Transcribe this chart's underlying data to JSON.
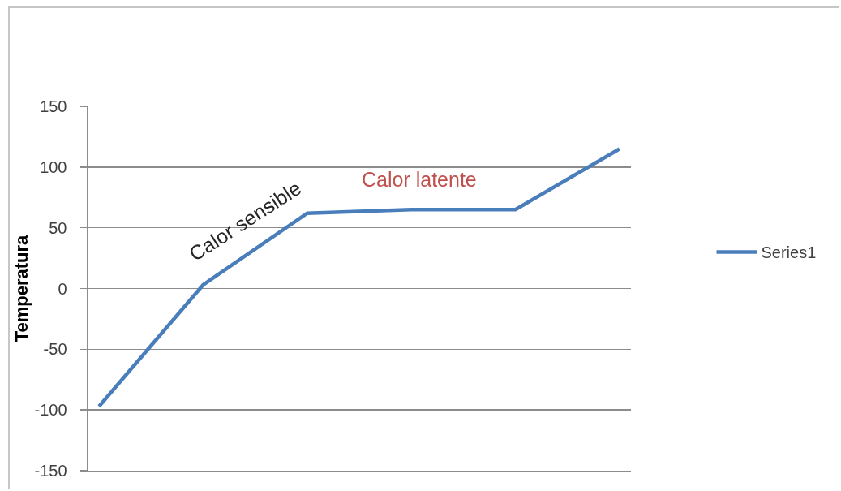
{
  "chart_data": {
    "type": "line",
    "ylabel": "Temperatura",
    "categories": [
      null,
      null,
      null,
      null,
      null,
      null
    ],
    "series": [
      {
        "name": "Series1",
        "color": "#4a7ebb",
        "values": [
          -97,
          3,
          62,
          65,
          65,
          115
        ]
      }
    ],
    "ylim": [
      -150,
      150
    ],
    "yticks": [
      -150,
      -100,
      -50,
      0,
      50,
      100,
      150
    ],
    "annotations": [
      "Calor sensible",
      "Calor latente"
    ],
    "grid": "y",
    "legend": "right",
    "tick_labels": "y",
    "line_style": "solid"
  }
}
